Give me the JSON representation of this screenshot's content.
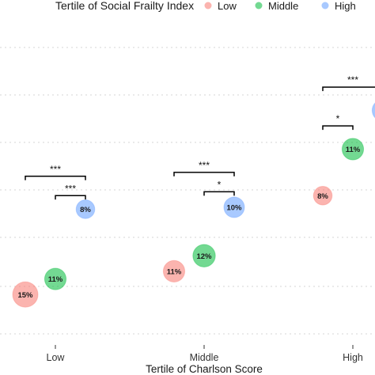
{
  "chart_data": {
    "type": "scatter",
    "legend": {
      "title": "Tertile of Social Frailty Index",
      "position": "top",
      "entries": [
        {
          "name": "Low",
          "color": "#F8766D"
        },
        {
          "name": "Middle",
          "color": "#00BA38"
        },
        {
          "name": "High",
          "color": "#619CFF"
        }
      ]
    },
    "xlabel": "Tertile of Charlson Score",
    "categories": [
      "Low",
      "Middle",
      "High"
    ],
    "grid": "horizontal-dotted",
    "points": [
      {
        "category": "Low",
        "group": "Low",
        "y": 1.5,
        "label": "15%",
        "size": 15
      },
      {
        "category": "Low",
        "group": "Middle",
        "y": 2.3,
        "label": "11%",
        "size": 11
      },
      {
        "category": "Low",
        "group": "High",
        "y": 5.9,
        "label": "8%",
        "size": 8
      },
      {
        "category": "Middle",
        "group": "Low",
        "y": 2.7,
        "label": "11%",
        "size": 11
      },
      {
        "category": "Middle",
        "group": "Middle",
        "y": 3.5,
        "label": "12%",
        "size": 12
      },
      {
        "category": "Middle",
        "group": "High",
        "y": 6.0,
        "label": "10%",
        "size": 10
      },
      {
        "category": "High",
        "group": "Low",
        "y": 6.6,
        "label": "8%",
        "size": 8
      },
      {
        "category": "High",
        "group": "Middle",
        "y": 9.0,
        "label": "11%",
        "size": 11
      },
      {
        "category": "High",
        "group": "High",
        "y": 11.0,
        "label": "",
        "size": 11
      }
    ],
    "significance": [
      {
        "category": "Low",
        "from": "Low",
        "to": "High",
        "label": "***",
        "y": 7.6
      },
      {
        "category": "Low",
        "from": "Middle",
        "to": "High",
        "label": "***",
        "y": 6.6
      },
      {
        "category": "Middle",
        "from": "Low",
        "to": "High",
        "label": "***",
        "y": 7.8
      },
      {
        "category": "Middle",
        "from": "Middle",
        "to": "High",
        "label": "*",
        "y": 6.8
      },
      {
        "category": "High",
        "from": "Low",
        "to": "High",
        "label": "***",
        "y": 12.2
      },
      {
        "category": "High",
        "from": "Low",
        "to": "Middle",
        "label": "*",
        "y": 10.2
      }
    ]
  }
}
